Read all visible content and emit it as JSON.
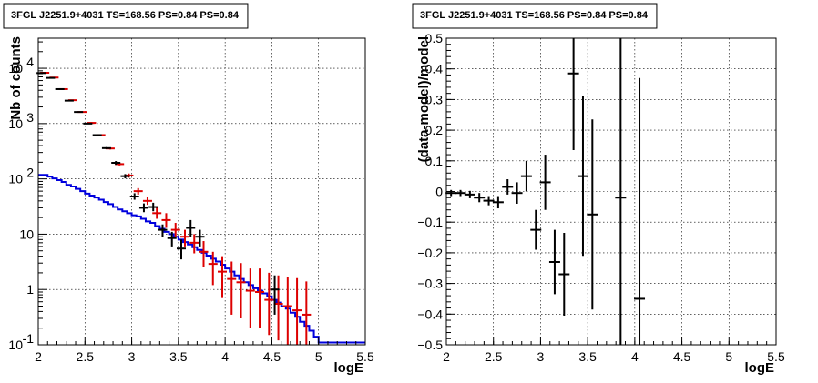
{
  "chart_data": [
    {
      "type": "histogram",
      "title": "3FGL J2251.9+4031 TS=168.56 PS=0.84 PS=0.84",
      "xlabel": "logE",
      "ylabel": "Nb of counts",
      "xlim": [
        2,
        5.5
      ],
      "ylim": [
        0.1,
        35000
      ],
      "yscale": "log",
      "grid": true,
      "xticks": [
        "2",
        "2.5",
        "3",
        "3.5",
        "4",
        "4.5",
        "5",
        "5.5"
      ],
      "yticks": [
        {
          "value": 0.1,
          "label": "10",
          "exp": "-1"
        },
        {
          "value": 1,
          "label": "1",
          "exp": ""
        },
        {
          "value": 10,
          "label": "10",
          "exp": ""
        },
        {
          "value": 100,
          "label": "10",
          "exp": "2"
        },
        {
          "value": 1000,
          "label": "10",
          "exp": "3"
        },
        {
          "value": 10000,
          "label": "10",
          "exp": "4"
        }
      ],
      "colors": {
        "data": "#000000",
        "model": "#dd0000",
        "background": "#0000dd"
      },
      "series": [
        {
          "role": "data",
          "x": [
            2.05,
            2.15,
            2.25,
            2.35,
            2.45,
            2.55,
            2.65,
            2.75,
            2.85,
            2.95,
            3.05,
            3.15,
            3.25,
            3.35,
            3.45,
            3.55,
            3.65,
            3.75,
            4.55
          ],
          "y": [
            8200,
            6700,
            4200,
            2600,
            1620,
            1000,
            620,
            360,
            195,
            112,
            48,
            30,
            31,
            12,
            8.5,
            5.5,
            13,
            9,
            1
          ],
          "ylo": [
            8100,
            6600,
            4140,
            2550,
            1590,
            980,
            600,
            345,
            180,
            102,
            42,
            25,
            26,
            9,
            6,
            3.5,
            9,
            6,
            0.35
          ],
          "yhi": [
            8300,
            6800,
            4260,
            2650,
            1650,
            1020,
            640,
            375,
            210,
            122,
            55,
            36,
            37,
            15,
            11,
            8,
            18,
            12,
            1.8
          ]
        },
        {
          "role": "model",
          "x": [
            2.05,
            2.15,
            2.25,
            2.35,
            2.45,
            2.55,
            2.65,
            2.75,
            2.85,
            2.95,
            3.05,
            3.15,
            3.25,
            3.35,
            3.45,
            3.55,
            3.65,
            3.75,
            3.85,
            3.95,
            4.05,
            4.15,
            4.25,
            4.35,
            4.45,
            4.55,
            4.65,
            4.75,
            4.85
          ],
          "y": [
            8300,
            6800,
            4200,
            2650,
            1620,
            1030,
            620,
            355,
            185,
            115,
            60,
            40,
            24,
            18,
            12,
            9,
            7,
            4.8,
            2.9,
            2.1,
            1.55,
            1.35,
            0.95,
            0.9,
            0.65,
            0.55,
            0.5,
            0.42,
            0.35
          ],
          "ylo": [
            8200,
            6700,
            4150,
            2600,
            1590,
            1000,
            600,
            340,
            175,
            105,
            52,
            34,
            19,
            13,
            9,
            6,
            4.5,
            2.6,
            1.2,
            0.7,
            0.35,
            0.3,
            0.2,
            0.2,
            0.15,
            0.12,
            0.1,
            0.1,
            0.1
          ],
          "yhi": [
            8400,
            6900,
            4250,
            2700,
            1650,
            1060,
            640,
            370,
            195,
            125,
            68,
            47,
            30,
            24,
            16,
            12,
            10,
            7.5,
            4.8,
            4,
            3.2,
            3,
            2.4,
            2.4,
            2,
            1.8,
            1.7,
            1.6,
            1.4
          ]
        },
        {
          "role": "background",
          "edges": [
            2.0,
            2.1,
            2.15,
            2.2,
            2.25,
            2.3,
            2.35,
            2.4,
            2.45,
            2.5,
            2.55,
            2.6,
            2.65,
            2.7,
            2.75,
            2.8,
            2.85,
            2.9,
            2.95,
            3.0,
            3.05,
            3.1,
            3.15,
            3.2,
            3.25,
            3.3,
            3.35,
            3.4,
            3.45,
            3.5,
            3.55,
            3.6,
            3.65,
            3.7,
            3.75,
            3.8,
            3.85,
            3.9,
            3.95,
            4.0,
            4.05,
            4.1,
            4.15,
            4.2,
            4.25,
            4.3,
            4.35,
            4.4,
            4.45,
            4.5,
            4.55,
            4.6,
            4.65,
            4.7,
            4.75,
            4.8,
            4.85,
            4.9,
            4.95,
            5.0,
            5.5
          ],
          "values": [
            118,
            110,
            102,
            95,
            88,
            78,
            73,
            66,
            60,
            54,
            50,
            46,
            42,
            38,
            35,
            31,
            28,
            26,
            24,
            22,
            21,
            19,
            17,
            16,
            14,
            12.5,
            11,
            10,
            9,
            8,
            7.2,
            6.5,
            5.8,
            5.2,
            4.6,
            4.1,
            3.6,
            3.2,
            2.8,
            2.4,
            2.1,
            1.8,
            1.55,
            1.35,
            1.2,
            1.05,
            0.95,
            0.85,
            0.75,
            0.65,
            0.58,
            0.5,
            0.45,
            0.38,
            0.32,
            0.26,
            0.22,
            0.18,
            0.14,
            0.11
          ]
        }
      ]
    },
    {
      "type": "scatter",
      "title": "3FGL J2251.9+4031 TS=168.56 PS=0.84 PS=0.84",
      "xlabel": "logE",
      "ylabel": "(data-model)/model",
      "xlim": [
        2,
        5.5
      ],
      "ylim": [
        -0.5,
        0.5
      ],
      "grid": true,
      "xticks": [
        "2",
        "2.5",
        "3",
        "3.5",
        "4",
        "4.5",
        "5",
        "5.5"
      ],
      "yticks": [
        "−0.5",
        "−0.4",
        "−0.3",
        "−0.2",
        "−0.1",
        "0",
        "0.1",
        "0.2",
        "0.3",
        "0.4",
        "0.5"
      ],
      "ytick_values": [
        -0.5,
        -0.4,
        -0.3,
        -0.2,
        -0.1,
        0,
        0.1,
        0.2,
        0.3,
        0.4,
        0.5
      ],
      "series": [
        {
          "x": [
            2.05,
            2.15,
            2.25,
            2.35,
            2.45,
            2.55,
            2.65,
            2.75,
            2.85,
            2.95,
            3.05,
            3.15,
            3.25,
            3.35,
            3.45,
            3.55,
            3.85,
            4.05
          ],
          "y": [
            -0.005,
            -0.005,
            -0.01,
            -0.02,
            -0.03,
            -0.035,
            0.015,
            -0.005,
            0.05,
            -0.125,
            0.03,
            -0.23,
            -0.27,
            0.385,
            0.05,
            -0.075,
            -0.02,
            -0.35
          ],
          "err": [
            0.01,
            0.01,
            0.012,
            0.015,
            0.015,
            0.02,
            0.025,
            0.035,
            0.05,
            0.065,
            0.09,
            0.105,
            0.135,
            0.25,
            0.26,
            0.31,
            0.55,
            0.72
          ]
        }
      ]
    }
  ]
}
